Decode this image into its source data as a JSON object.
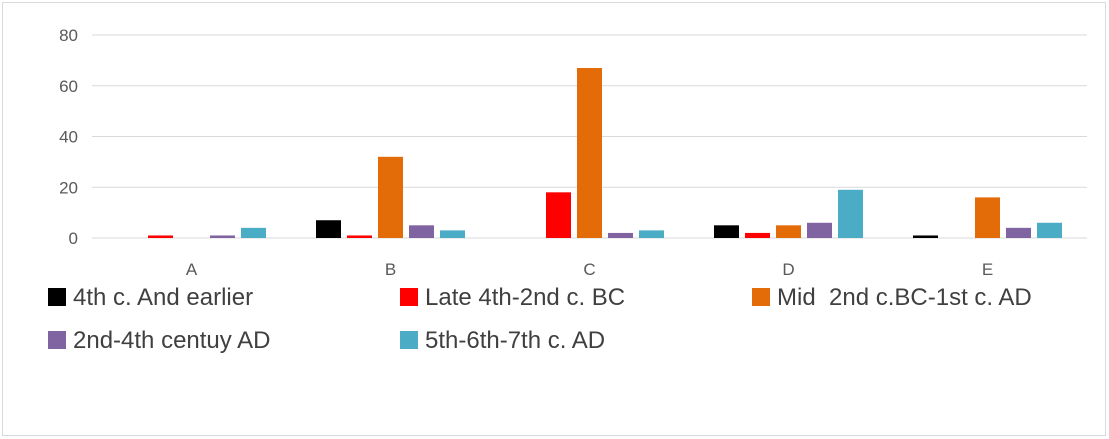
{
  "chart_data": {
    "type": "bar",
    "categories": [
      "A",
      "B",
      "C",
      "D",
      "E"
    ],
    "series": [
      {
        "name": "4th c. And earlier",
        "color": "#000000",
        "values": [
          0,
          7,
          0,
          5,
          1
        ]
      },
      {
        "name": "Late 4th-2nd c. BC",
        "color": "#ff0000",
        "values": [
          1,
          1,
          18,
          2,
          0
        ]
      },
      {
        "name": "Mid  2nd c.BC-1st c. AD",
        "color": "#e36c09",
        "values": [
          0,
          32,
          67,
          5,
          16
        ]
      },
      {
        "name": "2nd-4th centuy AD",
        "color": "#8064a2",
        "values": [
          1,
          5,
          2,
          6,
          4
        ]
      },
      {
        "name": "5th-6th-7th c. AD",
        "color": "#4bacc6",
        "values": [
          4,
          3,
          3,
          19,
          6
        ]
      }
    ],
    "title": "",
    "xlabel": "",
    "ylabel": "",
    "ylim": [
      0,
      80
    ],
    "yticks": [
      0,
      20,
      40,
      60,
      80
    ],
    "grid": true,
    "legend_position": "bottom"
  }
}
